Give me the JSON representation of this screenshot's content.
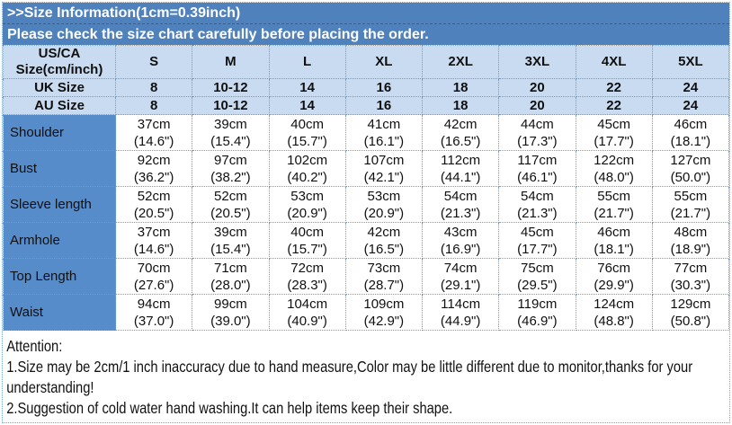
{
  "banner": {
    "title": ">>Size Information(1cm=0.39inch)",
    "subtitle": "Please check the size chart carefully before placing the order."
  },
  "colors": {
    "banner_bg": "#4f81bd",
    "header_cell_bg": "#c9dbf0",
    "row_label_bg": "#578cca",
    "grid_line": "#6e9bd1",
    "banner_text": "#ffffff",
    "body_text": "#101010"
  },
  "table": {
    "corner_lines": [
      "US/CA",
      "Size(cm/inch)"
    ],
    "size_columns": [
      "S",
      "M",
      "L",
      "XL",
      "2XL",
      "3XL",
      "4XL",
      "5XL"
    ],
    "uk_row": {
      "label": "UK Size",
      "values": [
        "8",
        "10-12",
        "14",
        "16",
        "18",
        "20",
        "22",
        "24"
      ]
    },
    "au_row": {
      "label": "AU Size",
      "values": [
        "8",
        "10-12",
        "14",
        "16",
        "18",
        "20",
        "22",
        "24"
      ]
    },
    "rows": [
      {
        "label": "Shoulder",
        "cells": [
          [
            "37cm",
            "(14.6\")"
          ],
          [
            "39cm",
            "(15.4\")"
          ],
          [
            "40cm",
            "(15.7\")"
          ],
          [
            "41cm",
            "(16.1\")"
          ],
          [
            "42cm",
            "(16.5\")"
          ],
          [
            "44cm",
            "(17.3\")"
          ],
          [
            "45cm",
            "(17.7\")"
          ],
          [
            "46cm",
            "(18.1\")"
          ]
        ]
      },
      {
        "label": "Bust",
        "cells": [
          [
            "92cm",
            "(36.2\")"
          ],
          [
            "97cm",
            "(38.2\")"
          ],
          [
            "102cm",
            "(40.2\")"
          ],
          [
            "107cm",
            "(42.1\")"
          ],
          [
            "112cm",
            "(44.1\")"
          ],
          [
            "117cm",
            "(46.1\")"
          ],
          [
            "122cm",
            "(48.0\")"
          ],
          [
            "127cm",
            "(50.0\")"
          ]
        ]
      },
      {
        "label": "Sleeve length",
        "cells": [
          [
            "52cm",
            "(20.5\")"
          ],
          [
            "52cm",
            "(20.5\")"
          ],
          [
            "53cm",
            "(20.9\")"
          ],
          [
            "53cm",
            "(20.9\")"
          ],
          [
            "54cm",
            "(21.3\")"
          ],
          [
            "54cm",
            "(21.3\")"
          ],
          [
            "55cm",
            "(21.7\")"
          ],
          [
            "55cm",
            "(21.7\")"
          ]
        ]
      },
      {
        "label": "Armhole",
        "cells": [
          [
            "37cm",
            "(14.6\")"
          ],
          [
            "39cm",
            "(15.4\")"
          ],
          [
            "40cm",
            "(15.7\")"
          ],
          [
            "42cm",
            "(16.5\")"
          ],
          [
            "43cm",
            "(16.9\")"
          ],
          [
            "45cm",
            "(17.7\")"
          ],
          [
            "46cm",
            "(18.1\")"
          ],
          [
            "48cm",
            "(18.9\")"
          ]
        ]
      },
      {
        "label": "Top Length",
        "cells": [
          [
            "70cm",
            "(27.6\")"
          ],
          [
            "71cm",
            "(28.0\")"
          ],
          [
            "72cm",
            "(28.3\")"
          ],
          [
            "73cm",
            "(28.7\")"
          ],
          [
            "74cm",
            "(29.1\")"
          ],
          [
            "75cm",
            "(29.5\")"
          ],
          [
            "76cm",
            "(29.9\")"
          ],
          [
            "77cm",
            "(30.3\")"
          ]
        ]
      },
      {
        "label": "Waist",
        "cells": [
          [
            "94cm",
            "(37.0\")"
          ],
          [
            "99cm",
            "(39.0\")"
          ],
          [
            "104cm",
            "(40.9\")"
          ],
          [
            "109cm",
            "(42.9\")"
          ],
          [
            "114cm",
            "(44.9\")"
          ],
          [
            "119cm",
            "(46.9\")"
          ],
          [
            "124cm",
            "(48.8\")"
          ],
          [
            "129cm",
            "(50.8\")"
          ]
        ]
      }
    ]
  },
  "attention": {
    "title": "Attention:",
    "notes": [
      "1.Size may be 2cm/1 inch inaccuracy due to hand measure,Color may be little different due to monitor,thanks for your understanding!",
      "2.Suggestion of cold water hand washing.It can help items keep their shape."
    ]
  }
}
